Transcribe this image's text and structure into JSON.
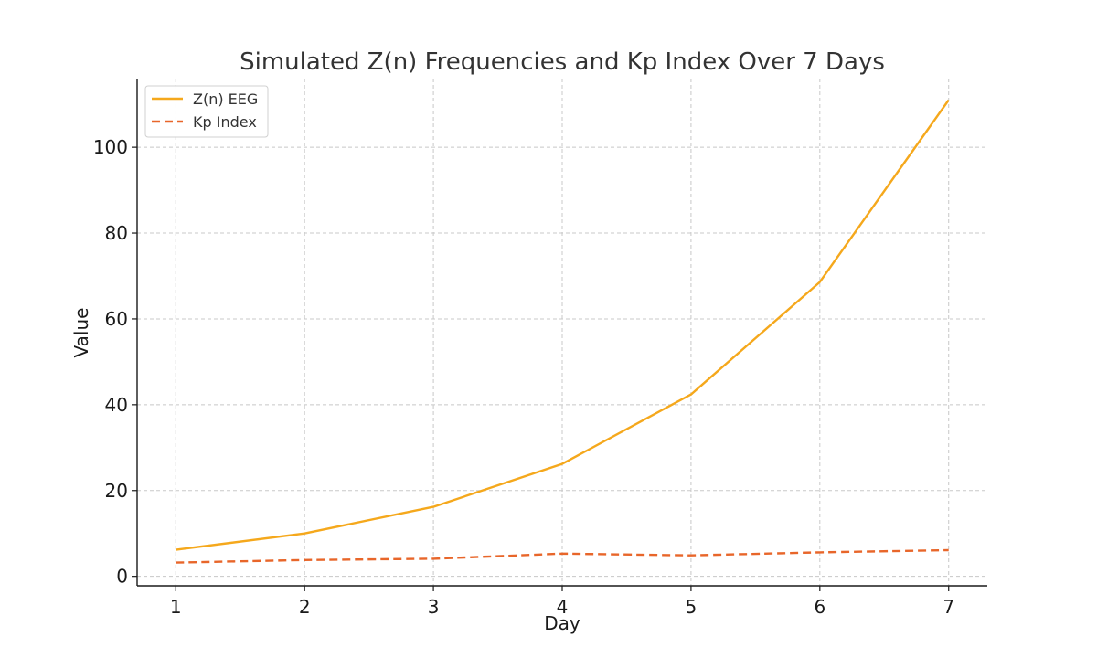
{
  "chart_data": {
    "type": "line",
    "title": "Simulated Z(n) Frequencies and Kp Index Over 7 Days",
    "xlabel": "Day",
    "ylabel": "Value",
    "x": [
      1,
      2,
      3,
      4,
      5,
      6,
      7
    ],
    "xticks": [
      "1",
      "2",
      "3",
      "4",
      "5",
      "6",
      "7"
    ],
    "xlim": [
      0.7,
      7.3
    ],
    "ylim": [
      -2.2,
      116
    ],
    "yticks": [
      0,
      20,
      40,
      60,
      80,
      100
    ],
    "ytick_labels": [
      "0",
      "20",
      "40",
      "60",
      "80",
      "100"
    ],
    "grid": true,
    "legend_position": "top-left",
    "series": [
      {
        "name": "Z(n) EEG",
        "values": [
          6.2,
          10.0,
          16.2,
          26.2,
          42.4,
          68.6,
          111.0
        ],
        "color": "#f5a81c",
        "style": "solid"
      },
      {
        "name": "Kp Index",
        "values": [
          3.2,
          3.8,
          4.1,
          5.3,
          4.9,
          5.6,
          6.1
        ],
        "color": "#e8662a",
        "style": "dashed"
      }
    ]
  }
}
